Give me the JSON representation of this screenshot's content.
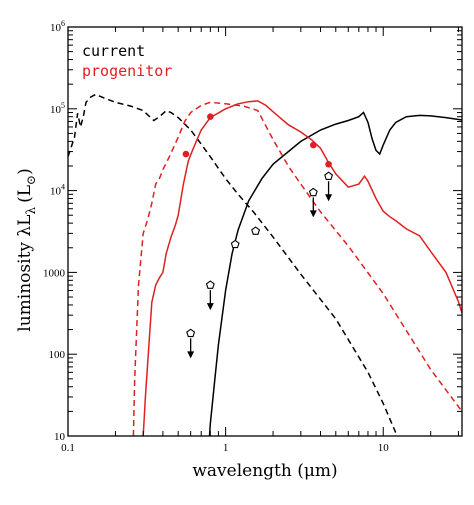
{
  "chart_data": {
    "type": "line",
    "title": "",
    "xlabel": "wavelength (μm)",
    "ylabel_main": "luminosity λL",
    "ylabel_sub": "λ",
    "ylabel_unit": "(L",
    "ylabel_unit_sub": "⊙",
    "ylabel_close": ")",
    "x_scale": "log",
    "y_scale": "log",
    "xlim": [
      0.1,
      31.6
    ],
    "ylim": [
      10,
      1000000
    ],
    "x_ticks": [
      {
        "value": 0.1,
        "label": "0.1"
      },
      {
        "value": 1,
        "label": "1"
      },
      {
        "value": 10,
        "label": "10"
      }
    ],
    "y_ticks": [
      {
        "value": 10,
        "label": "10",
        "base": "",
        "exp": ""
      },
      {
        "value": 100,
        "label": "100",
        "base": "",
        "exp": ""
      },
      {
        "value": 1000,
        "label": "1000",
        "base": "",
        "exp": ""
      },
      {
        "value": 10000,
        "label": "",
        "base": "10",
        "exp": "4"
      },
      {
        "value": 100000,
        "label": "",
        "base": "10",
        "exp": "5"
      },
      {
        "value": 1000000,
        "label": "",
        "base": "10",
        "exp": "6"
      }
    ],
    "legend": [
      {
        "label": "current",
        "color": "#000000"
      },
      {
        "label": "progenitor",
        "color": "#e02020"
      }
    ],
    "series": [
      {
        "legend_index": 0,
        "color": "#000000",
        "dash": true,
        "points": [
          [
            0.1,
            26000
          ],
          [
            0.11,
            45000
          ],
          [
            0.115,
            88000
          ],
          [
            0.12,
            60000
          ],
          [
            0.125,
            80000
          ],
          [
            0.13,
            120000
          ],
          [
            0.14,
            140000
          ],
          [
            0.15,
            150000
          ],
          [
            0.17,
            135000
          ],
          [
            0.2,
            120000
          ],
          [
            0.25,
            108000
          ],
          [
            0.3,
            95000
          ],
          [
            0.35,
            72000
          ],
          [
            0.38,
            80000
          ],
          [
            0.42,
            95000
          ],
          [
            0.45,
            90000
          ],
          [
            0.5,
            78000
          ],
          [
            0.6,
            55000
          ],
          [
            0.7,
            37000
          ],
          [
            0.8,
            26000
          ],
          [
            1.0,
            14000
          ],
          [
            1.2,
            9000
          ],
          [
            1.5,
            5500
          ],
          [
            2,
            2700
          ],
          [
            3,
            950
          ],
          [
            5,
            270
          ],
          [
            8,
            60
          ],
          [
            10,
            25
          ],
          [
            12,
            11
          ]
        ]
      },
      {
        "legend_index": 0,
        "color": "#000000",
        "dash": false,
        "points": [
          [
            0.79,
            10
          ],
          [
            0.8,
            14
          ],
          [
            0.85,
            45
          ],
          [
            0.9,
            130
          ],
          [
            1.0,
            600
          ],
          [
            1.1,
            1700
          ],
          [
            1.2,
            3300
          ],
          [
            1.4,
            7500
          ],
          [
            1.7,
            14000
          ],
          [
            2,
            21000
          ],
          [
            3,
            40000
          ],
          [
            4,
            55000
          ],
          [
            5,
            65000
          ],
          [
            6,
            72000
          ],
          [
            7,
            80000
          ],
          [
            7.5,
            90000
          ],
          [
            8,
            68000
          ],
          [
            8.5,
            43000
          ],
          [
            9,
            31000
          ],
          [
            9.5,
            28000
          ],
          [
            10,
            36000
          ],
          [
            11,
            55000
          ],
          [
            12,
            68000
          ],
          [
            14,
            80000
          ],
          [
            17,
            83000
          ],
          [
            20,
            82000
          ],
          [
            25,
            78000
          ],
          [
            31.6,
            73000
          ]
        ]
      },
      {
        "legend_index": 1,
        "color": "#e02020",
        "dash": true,
        "points": [
          [
            0.26,
            10
          ],
          [
            0.265,
            50
          ],
          [
            0.28,
            700
          ],
          [
            0.3,
            3000
          ],
          [
            0.32,
            4400
          ],
          [
            0.34,
            7000
          ],
          [
            0.36,
            12000
          ],
          [
            0.38,
            14000
          ],
          [
            0.4,
            18000
          ],
          [
            0.44,
            26000
          ],
          [
            0.5,
            45000
          ],
          [
            0.55,
            70000
          ],
          [
            0.6,
            90000
          ],
          [
            0.7,
            110000
          ],
          [
            0.8,
            120000
          ],
          [
            1.0,
            115000
          ],
          [
            1.2,
            110000
          ],
          [
            1.3,
            108000
          ],
          [
            1.6,
            95000
          ],
          [
            2,
            42000
          ],
          [
            2.5,
            20000
          ],
          [
            3,
            12000
          ],
          [
            4,
            5500
          ],
          [
            6,
            2100
          ],
          [
            10,
            550
          ],
          [
            20,
            65
          ],
          [
            31.6,
            20
          ]
        ]
      },
      {
        "legend_index": 1,
        "color": "#e02020",
        "dash": false,
        "points": [
          [
            0.3,
            10
          ],
          [
            0.31,
            30
          ],
          [
            0.34,
            430
          ],
          [
            0.36,
            700
          ],
          [
            0.38,
            860
          ],
          [
            0.4,
            1000
          ],
          [
            0.42,
            1700
          ],
          [
            0.45,
            2700
          ],
          [
            0.48,
            3800
          ],
          [
            0.5,
            5000
          ],
          [
            0.54,
            12000
          ],
          [
            0.58,
            23000
          ],
          [
            0.62,
            32000
          ],
          [
            0.7,
            55000
          ],
          [
            0.8,
            78000
          ],
          [
            1.0,
            100000
          ],
          [
            1.2,
            115000
          ],
          [
            1.4,
            122000
          ],
          [
            1.6,
            125000
          ],
          [
            1.8,
            110000
          ],
          [
            2,
            92000
          ],
          [
            2.5,
            64000
          ],
          [
            3,
            52000
          ],
          [
            3.5,
            42000
          ],
          [
            4,
            33000
          ],
          [
            4.5,
            22000
          ],
          [
            5,
            16000
          ],
          [
            6,
            11000
          ],
          [
            7,
            12000
          ],
          [
            7.6,
            15000
          ],
          [
            8,
            13000
          ],
          [
            9,
            8000
          ],
          [
            10,
            5600
          ],
          [
            11,
            4800
          ],
          [
            12,
            4300
          ],
          [
            14,
            3400
          ],
          [
            17,
            2800
          ],
          [
            20,
            1800
          ],
          [
            25,
            1000
          ],
          [
            30,
            440
          ],
          [
            31.6,
            320
          ]
        ]
      }
    ],
    "markers": [
      {
        "x": 0.56,
        "y": 28000,
        "color": "#e02020"
      },
      {
        "x": 0.8,
        "y": 80000,
        "color": "#e02020"
      },
      {
        "x": 3.6,
        "y": 36000,
        "color": "#e02020"
      },
      {
        "x": 4.5,
        "y": 21000,
        "color": "#e02020"
      }
    ],
    "detections": [
      {
        "x": 1.15,
        "y": 2200
      },
      {
        "x": 1.55,
        "y": 3200
      }
    ],
    "upper_limits": [
      {
        "x": 0.6,
        "y": 180
      },
      {
        "x": 0.8,
        "y": 700
      },
      {
        "x": 3.6,
        "y": 9500
      },
      {
        "x": 4.5,
        "y": 15000
      }
    ]
  }
}
